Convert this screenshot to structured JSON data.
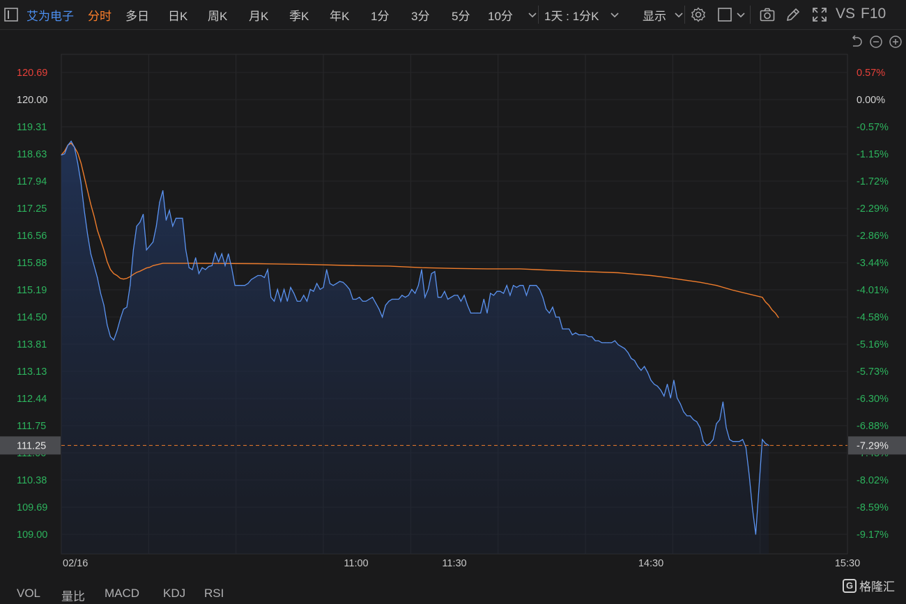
{
  "toolbar": {
    "stock_name": "艾为电子",
    "tabs": [
      "分时",
      "多日",
      "日K",
      "周K",
      "月K",
      "季K",
      "年K",
      "1分",
      "3分",
      "5分",
      "10分"
    ],
    "active_tab": "分时",
    "period_select": "1天 : 1分K",
    "display_label": "显示",
    "vs_label": "VS",
    "f10_label": "F10"
  },
  "lower_tabs": [
    "VOL",
    "量比",
    "MACD",
    "KDJ",
    "RSI"
  ],
  "watermark": {
    "icon_letter": "G",
    "text": "格隆汇"
  },
  "colors": {
    "price_line": "#5b93f0",
    "avg_line": "#f07d2c",
    "up": "#e8413a",
    "down": "#2db35d",
    "neutral": "#d4d4d4"
  },
  "chart_data": {
    "type": "line",
    "date_label": "02/16",
    "x_ticks": [
      "11:00",
      "11:30",
      "14:30",
      "15:30"
    ],
    "y_ticks_left": [
      "120.69",
      "120.00",
      "119.31",
      "118.63",
      "117.94",
      "117.25",
      "116.56",
      "115.88",
      "115.19",
      "114.50",
      "113.81",
      "113.13",
      "112.44",
      "111.75",
      "111.06",
      "110.38",
      "109.69",
      "109.00"
    ],
    "y_ticks_right": [
      "0.57%",
      "0.00%",
      "-0.57%",
      "-1.15%",
      "-1.72%",
      "-2.29%",
      "-2.86%",
      "-3.44%",
      "-4.01%",
      "-4.58%",
      "-5.16%",
      "-5.73%",
      "-6.30%",
      "-6.88%",
      "-7.45%",
      "-8.02%",
      "-8.59%",
      "-9.17%"
    ],
    "ylim": [
      109.0,
      120.69
    ],
    "prev_close": 120.0,
    "current_price": "111.25",
    "current_pct": "-7.29%",
    "total_minutes": 240,
    "series": [
      {
        "points": [
          [
            0,
            118.6
          ],
          [
            1,
            118.63
          ],
          [
            2,
            118.85
          ],
          [
            3,
            118.95
          ],
          [
            4,
            118.8
          ],
          [
            5,
            118.4
          ],
          [
            6,
            117.9
          ],
          [
            7,
            117.2
          ],
          [
            8,
            116.6
          ],
          [
            9,
            116.1
          ],
          [
            10,
            115.8
          ],
          [
            11,
            115.5
          ],
          [
            12,
            115.1
          ],
          [
            13,
            114.8
          ],
          [
            14,
            114.3
          ],
          [
            15,
            114.0
          ],
          [
            16,
            113.92
          ],
          [
            17,
            114.15
          ],
          [
            18,
            114.45
          ],
          [
            19,
            114.7
          ],
          [
            20,
            114.75
          ],
          [
            21,
            115.3
          ],
          [
            22,
            116.2
          ],
          [
            23,
            116.8
          ],
          [
            24,
            116.9
          ],
          [
            25,
            117.1
          ],
          [
            26,
            116.2
          ],
          [
            27,
            116.3
          ],
          [
            28,
            116.4
          ],
          [
            29,
            116.8
          ],
          [
            30,
            117.4
          ],
          [
            31,
            117.7
          ],
          [
            32,
            116.95
          ],
          [
            33,
            117.2
          ],
          [
            34,
            116.8
          ],
          [
            35,
            117.0
          ],
          [
            36,
            117.0
          ],
          [
            37,
            117.0
          ],
          [
            38,
            116.2
          ],
          [
            39,
            115.75
          ],
          [
            40,
            115.7
          ],
          [
            41,
            116.0
          ],
          [
            42,
            115.6
          ],
          [
            43,
            115.75
          ],
          [
            44,
            115.7
          ],
          [
            45,
            115.78
          ],
          [
            46,
            115.8
          ],
          [
            47,
            116.12
          ],
          [
            48,
            115.9
          ],
          [
            49,
            116.1
          ],
          [
            50,
            115.8
          ],
          [
            51,
            116.1
          ],
          [
            52,
            115.75
          ],
          [
            53,
            115.3
          ],
          [
            54,
            115.3
          ],
          [
            55,
            115.3
          ],
          [
            56,
            115.3
          ],
          [
            57,
            115.35
          ],
          [
            58,
            115.45
          ],
          [
            59,
            115.5
          ],
          [
            60,
            115.55
          ],
          [
            61,
            115.55
          ],
          [
            62,
            115.5
          ],
          [
            63,
            115.7
          ],
          [
            64,
            115.0
          ],
          [
            65,
            114.9
          ],
          [
            66,
            115.2
          ],
          [
            67,
            114.9
          ],
          [
            68,
            115.2
          ],
          [
            69,
            114.9
          ],
          [
            70,
            115.25
          ],
          [
            71,
            115.1
          ],
          [
            72,
            114.9
          ],
          [
            73,
            114.9
          ],
          [
            74,
            115.05
          ],
          [
            75,
            114.9
          ],
          [
            76,
            115.2
          ],
          [
            77,
            115.15
          ],
          [
            78,
            115.35
          ],
          [
            79,
            115.2
          ],
          [
            80,
            115.25
          ],
          [
            81,
            115.7
          ],
          [
            82,
            115.35
          ],
          [
            83,
            115.3
          ],
          [
            84,
            115.35
          ],
          [
            85,
            115.4
          ],
          [
            86,
            115.38
          ],
          [
            87,
            115.3
          ],
          [
            88,
            115.2
          ],
          [
            89,
            114.95
          ],
          [
            90,
            114.95
          ],
          [
            91,
            115.0
          ],
          [
            92,
            114.9
          ],
          [
            93,
            114.9
          ],
          [
            94,
            114.95
          ],
          [
            95,
            115.0
          ],
          [
            96,
            114.85
          ],
          [
            97,
            114.7
          ],
          [
            98,
            114.5
          ],
          [
            99,
            114.8
          ],
          [
            100,
            114.9
          ],
          [
            101,
            114.95
          ],
          [
            102,
            114.95
          ],
          [
            103,
            114.95
          ],
          [
            104,
            115.05
          ],
          [
            105,
            115.0
          ],
          [
            106,
            115.05
          ],
          [
            107,
            115.2
          ],
          [
            108,
            115.1
          ],
          [
            109,
            115.3
          ],
          [
            110,
            115.7
          ],
          [
            111,
            115.0
          ],
          [
            112,
            115.2
          ],
          [
            113,
            115.6
          ],
          [
            114,
            115.65
          ],
          [
            115,
            115.0
          ],
          [
            116,
            115.0
          ],
          [
            117,
            115.15
          ],
          [
            118,
            114.95
          ],
          [
            119,
            115.0
          ],
          [
            120,
            115.05
          ],
          [
            121,
            115.05
          ],
          [
            122,
            114.9
          ],
          [
            123,
            115.05
          ],
          [
            124,
            114.8
          ],
          [
            125,
            114.6
          ],
          [
            126,
            114.6
          ],
          [
            127,
            114.6
          ],
          [
            128,
            114.6
          ],
          [
            129,
            114.95
          ],
          [
            130,
            114.6
          ],
          [
            131,
            115.1
          ],
          [
            132,
            115.05
          ],
          [
            133,
            115.15
          ],
          [
            134,
            115.15
          ],
          [
            135,
            115.1
          ],
          [
            136,
            115.3
          ],
          [
            137,
            115.05
          ],
          [
            138,
            115.3
          ],
          [
            139,
            115.25
          ],
          [
            140,
            115.3
          ],
          [
            141,
            115.3
          ],
          [
            142,
            115.05
          ],
          [
            143,
            115.3
          ],
          [
            144,
            115.3
          ],
          [
            145,
            115.3
          ],
          [
            146,
            115.2
          ],
          [
            147,
            115.0
          ],
          [
            148,
            114.7
          ],
          [
            149,
            114.6
          ],
          [
            150,
            114.75
          ],
          [
            151,
            114.5
          ],
          [
            152,
            114.5
          ],
          [
            153,
            114.2
          ],
          [
            154,
            114.2
          ],
          [
            155,
            114.2
          ],
          [
            156,
            114.05
          ],
          [
            157,
            114.1
          ],
          [
            158,
            114.05
          ],
          [
            159,
            114.05
          ],
          [
            160,
            114.05
          ],
          [
            161,
            114.0
          ],
          [
            162,
            114.0
          ],
          [
            163,
            113.9
          ],
          [
            164,
            113.9
          ],
          [
            165,
            113.85
          ],
          [
            166,
            113.85
          ],
          [
            167,
            113.85
          ],
          [
            168,
            113.85
          ],
          [
            169,
            113.9
          ],
          [
            170,
            113.8
          ],
          [
            171,
            113.75
          ],
          [
            172,
            113.7
          ],
          [
            173,
            113.6
          ],
          [
            174,
            113.45
          ],
          [
            175,
            113.4
          ],
          [
            176,
            113.25
          ],
          [
            177,
            113.15
          ],
          [
            178,
            113.25
          ],
          [
            179,
            113.1
          ],
          [
            180,
            112.9
          ],
          [
            181,
            112.8
          ],
          [
            182,
            112.75
          ],
          [
            183,
            112.65
          ],
          [
            184,
            112.5
          ],
          [
            185,
            112.8
          ],
          [
            186,
            112.45
          ],
          [
            187,
            112.9
          ],
          [
            188,
            112.45
          ],
          [
            189,
            112.3
          ],
          [
            190,
            112.1
          ],
          [
            191,
            112.0
          ],
          [
            192,
            112.0
          ],
          [
            193,
            111.9
          ],
          [
            194,
            111.85
          ],
          [
            195,
            111.7
          ],
          [
            196,
            111.35
          ],
          [
            197,
            111.25
          ],
          [
            198,
            111.3
          ],
          [
            199,
            111.4
          ],
          [
            200,
            111.8
          ],
          [
            201,
            111.9
          ],
          [
            202,
            112.35
          ],
          [
            203,
            111.7
          ],
          [
            204,
            111.4
          ],
          [
            205,
            111.35
          ],
          [
            206,
            111.35
          ],
          [
            207,
            111.35
          ],
          [
            208,
            111.4
          ],
          [
            209,
            111.2
          ],
          [
            210,
            110.5
          ],
          [
            211,
            109.65
          ],
          [
            212,
            109.0
          ],
          [
            213,
            110.2
          ],
          [
            214,
            111.4
          ],
          [
            215,
            111.3
          ],
          [
            216,
            111.25
          ]
        ]
      },
      {
        "points": [
          [
            0,
            118.6
          ],
          [
            1,
            118.7
          ],
          [
            2,
            118.85
          ],
          [
            3,
            118.9
          ],
          [
            4,
            118.8
          ],
          [
            5,
            118.65
          ],
          [
            6,
            118.4
          ],
          [
            7,
            118.05
          ],
          [
            8,
            117.7
          ],
          [
            9,
            117.35
          ],
          [
            10,
            117.05
          ],
          [
            11,
            116.7
          ],
          [
            12,
            116.45
          ],
          [
            13,
            116.2
          ],
          [
            14,
            115.9
          ],
          [
            15,
            115.7
          ],
          [
            16,
            115.6
          ],
          [
            17,
            115.55
          ],
          [
            18,
            115.48
          ],
          [
            19,
            115.46
          ],
          [
            20,
            115.48
          ],
          [
            21,
            115.52
          ],
          [
            22,
            115.58
          ],
          [
            23,
            115.63
          ],
          [
            24,
            115.66
          ],
          [
            25,
            115.7
          ],
          [
            26,
            115.74
          ],
          [
            27,
            115.76
          ],
          [
            28,
            115.8
          ],
          [
            29,
            115.82
          ],
          [
            30,
            115.84
          ],
          [
            31,
            115.86
          ],
          [
            40,
            115.86
          ],
          [
            60,
            115.85
          ],
          [
            75,
            115.83
          ],
          [
            90,
            115.8
          ],
          [
            100,
            115.79
          ],
          [
            110,
            115.75
          ],
          [
            120,
            115.73
          ],
          [
            130,
            115.72
          ],
          [
            140,
            115.72
          ],
          [
            145,
            115.7
          ],
          [
            150,
            115.68
          ],
          [
            160,
            115.65
          ],
          [
            170,
            115.62
          ],
          [
            180,
            115.55
          ],
          [
            185,
            115.5
          ],
          [
            190,
            115.44
          ],
          [
            195,
            115.38
          ],
          [
            200,
            115.3
          ],
          [
            205,
            115.18
          ],
          [
            210,
            115.08
          ],
          [
            214,
            115.0
          ],
          [
            215,
            114.88
          ],
          [
            216,
            114.8
          ],
          [
            217,
            114.68
          ],
          [
            218,
            114.6
          ],
          [
            219,
            114.48
          ]
        ]
      }
    ]
  }
}
